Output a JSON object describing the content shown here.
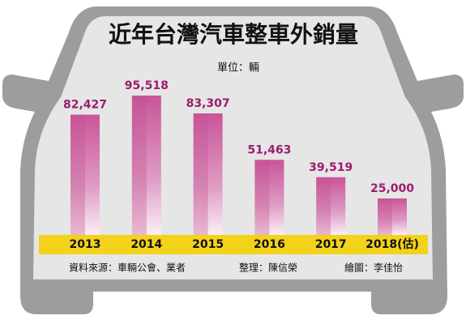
{
  "chart_data": {
    "type": "bar",
    "title": "近年台灣汽車整車外銷量",
    "subtitle": "單位：輛",
    "categories": [
      "2013",
      "2014",
      "2015",
      "2016",
      "2017",
      "2018(估)"
    ],
    "values": [
      82427,
      95518,
      83307,
      51463,
      39519,
      25000
    ],
    "value_labels": [
      "82,427",
      "95,518",
      "83,307",
      "51,463",
      "39,519",
      "25,000"
    ],
    "color": "#c4528f",
    "source": "資料來源：車輛公會、業者",
    "editor": "整理：陳信榮",
    "illustrator": "繪圖：李佳怡"
  }
}
